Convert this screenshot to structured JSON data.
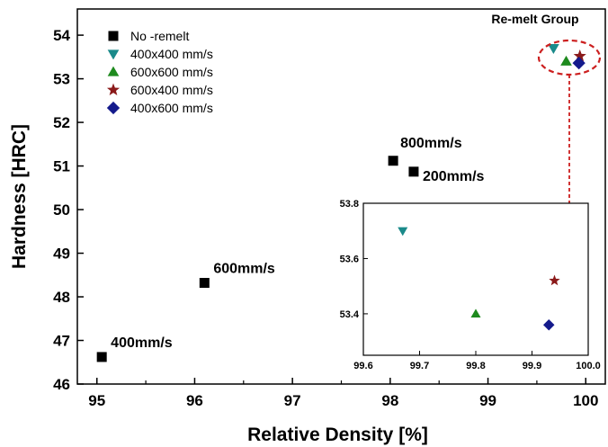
{
  "chart_data": [
    {
      "type": "scatter",
      "xlabel": "Relative Density [%]",
      "ylabel": "Hardness [HRC]",
      "xlim": [
        94.8,
        100.2
      ],
      "ylim": [
        46,
        54.6
      ],
      "xticks": [
        95,
        96,
        97,
        98,
        99,
        100
      ],
      "yticks": [
        46,
        47,
        48,
        49,
        50,
        51,
        52,
        53,
        54
      ],
      "legend_position": "top-left",
      "series": [
        {
          "name": "No -remelt",
          "marker": "square",
          "color": "#000000",
          "points": [
            [
              95.05,
              46.62
            ],
            [
              96.1,
              48.32
            ],
            [
              98.03,
              51.12
            ],
            [
              98.24,
              50.87
            ]
          ],
          "labels": [
            "400mm/s",
            "600mm/s",
            "800mm/s",
            "200mm/s"
          ]
        },
        {
          "name": "400x400 mm/s",
          "marker": "triangle-down",
          "color": "#1a8a8a",
          "points": [
            [
              99.67,
              53.7
            ]
          ]
        },
        {
          "name": "600x600 mm/s",
          "marker": "triangle-up",
          "color": "#1e8a1e",
          "points": [
            [
              99.8,
              53.4
            ]
          ]
        },
        {
          "name": "600x400 mm/s",
          "marker": "star",
          "color": "#8b1a1a",
          "points": [
            [
              99.94,
              53.52
            ]
          ]
        },
        {
          "name": "400x600 mm/s",
          "marker": "diamond",
          "color": "#141a8c",
          "points": [
            [
              99.93,
              53.36
            ]
          ]
        }
      ],
      "annotation": "Re-melt Group"
    },
    {
      "type": "scatter",
      "role": "inset",
      "xlim": [
        99.6,
        100.0
      ],
      "ylim": [
        53.25,
        53.8
      ],
      "xticks": [
        99.6,
        99.7,
        99.8,
        99.9,
        100.0
      ],
      "xtick_labels": [
        "99.6",
        "99.7",
        "99.8",
        "99.9",
        "100.0"
      ],
      "yticks": [
        53.4,
        53.6,
        53.8
      ],
      "ytick_labels": [
        "53.4",
        "53.6",
        "53.8"
      ],
      "series": [
        {
          "name": "400x400 mm/s",
          "marker": "triangle-down",
          "color": "#1a8a8a",
          "points": [
            [
              99.67,
              53.7
            ]
          ]
        },
        {
          "name": "600x600 mm/s",
          "marker": "triangle-up",
          "color": "#1e8a1e",
          "points": [
            [
              99.8,
              53.4
            ]
          ]
        },
        {
          "name": "600x400 mm/s",
          "marker": "star",
          "color": "#8b1a1a",
          "points": [
            [
              99.94,
              53.52
            ]
          ]
        },
        {
          "name": "400x600 mm/s",
          "marker": "diamond",
          "color": "#141a8c",
          "points": [
            [
              99.93,
              53.36
            ]
          ]
        }
      ]
    }
  ],
  "colors": {
    "axis": "#000000",
    "highlight": "#cc1f1f"
  }
}
